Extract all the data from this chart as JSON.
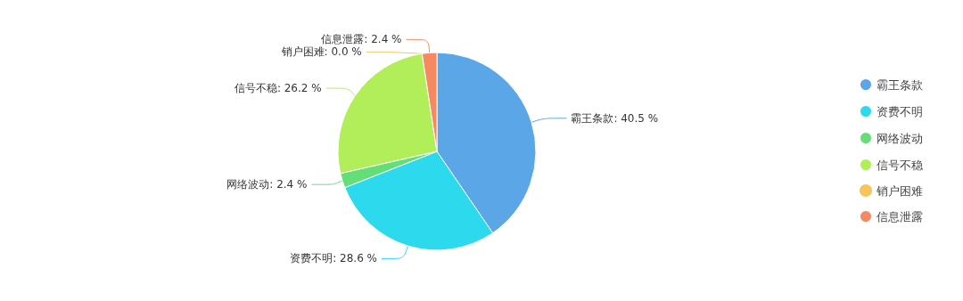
{
  "chart_data": {
    "type": "pie",
    "categories": [
      "霸王条款",
      "资费不明",
      "网络波动",
      "信号不稳",
      "销户困难",
      "信息泄露"
    ],
    "values": [
      40.5,
      28.6,
      2.4,
      26.2,
      0.0,
      2.4
    ],
    "colors": [
      "#5aa6e6",
      "#2dd9ec",
      "#66de78",
      "#b2ee5a",
      "#f7c45c",
      "#f58a62"
    ],
    "value_labels": [
      "霸王条款: 40.5 %",
      "资费不明: 28.6 %",
      "网络波动: 2.4 %",
      "信号不稳: 26.2 %",
      "销户困难: 0.0 %",
      "信息泄露: 2.4 %"
    ],
    "legend": "right"
  }
}
